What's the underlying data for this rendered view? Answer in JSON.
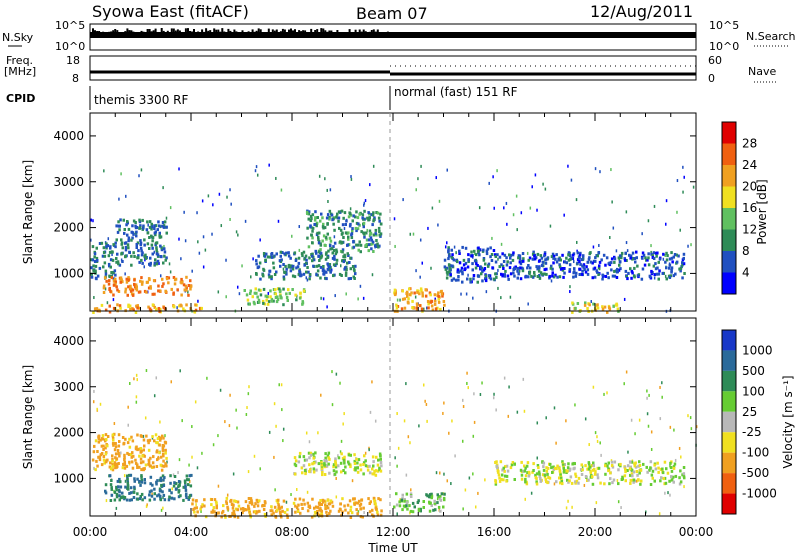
{
  "header": {
    "station": "Syowa East (fitACF)",
    "beam": "Beam 07",
    "date": "12/Aug/2011"
  },
  "strips": {
    "nsky_label": "N.Sky",
    "nsky_ticks": [
      "10^5",
      "10^0"
    ],
    "nsearch_label": "N.Search",
    "freq_label_1": "Freq.",
    "freq_label_2": "[MHz]",
    "freq_ticks": [
      "18",
      "8"
    ],
    "nave_label": "Nave",
    "nave_ticks": [
      "60",
      "0"
    ],
    "cpid_label": "CPID",
    "cpid_modes": [
      "themis 3300 RF",
      "normal (fast) 151 RF"
    ]
  },
  "axes": {
    "ylabel": "Slant Range [km]",
    "xlabel": "Time UT",
    "y_ticks": [
      "1000",
      "2000",
      "3000",
      "4000"
    ],
    "x_ticks": [
      "00:00",
      "04:00",
      "08:00",
      "12:00",
      "16:00",
      "20:00",
      "00:00"
    ]
  },
  "colorbars": {
    "power": {
      "label": "Power [dB]",
      "ticks": [
        "4",
        "8",
        "12",
        "16",
        "20",
        "24",
        "28"
      ],
      "colors": [
        "#0000ff",
        "#2050c0",
        "#2e8b57",
        "#60c060",
        "#f0e020",
        "#f0a020",
        "#f06010",
        "#e00000"
      ]
    },
    "velocity": {
      "label": "Velocity [m s⁻¹]",
      "ticks": [
        "1000",
        "500",
        "100",
        "25",
        "-25",
        "-100",
        "-500",
        "-1000"
      ],
      "colors": [
        "#1838c8",
        "#2a6a9a",
        "#2e8b57",
        "#66cc33",
        "#b8b8b8",
        "#f0e020",
        "#f0a020",
        "#f06010",
        "#e00000"
      ]
    }
  },
  "chart_data": [
    {
      "type": "heatmap",
      "title": "Power",
      "xlabel": "Time UT",
      "ylabel": "Slant Range [km]",
      "xlim": [
        0,
        24
      ],
      "ylim": [
        180,
        4500
      ],
      "colorbar_label": "Power [dB]",
      "colorbar_range": [
        0,
        32
      ],
      "regions": [
        {
          "t": [
            0.0,
            1.0
          ],
          "r": [
            900,
            1700
          ],
          "value": 8
        },
        {
          "t": [
            0.5,
            4.0
          ],
          "r": [
            550,
            950
          ],
          "value": 24
        },
        {
          "t": [
            0.0,
            4.5
          ],
          "r": [
            180,
            350
          ],
          "value": 22
        },
        {
          "t": [
            1.0,
            3.0
          ],
          "r": [
            1200,
            2200
          ],
          "value": 8
        },
        {
          "t": [
            6.0,
            8.5
          ],
          "r": [
            350,
            700
          ],
          "value": 14
        },
        {
          "t": [
            6.5,
            10.5
          ],
          "r": [
            900,
            1500
          ],
          "value": 8
        },
        {
          "t": [
            8.5,
            11.5
          ],
          "r": [
            1500,
            2400
          ],
          "value": 10
        },
        {
          "t": [
            12.0,
            14.0
          ],
          "r": [
            200,
            700
          ],
          "value": 22
        },
        {
          "t": [
            14.0,
            16.0
          ],
          "r": [
            800,
            1600
          ],
          "value": 6
        },
        {
          "t": [
            16.0,
            23.5
          ],
          "r": [
            900,
            1500
          ],
          "value": 6
        },
        {
          "t": [
            19.0,
            21.0
          ],
          "r": [
            180,
            400
          ],
          "value": 18
        }
      ]
    },
    {
      "type": "heatmap",
      "title": "Velocity",
      "xlabel": "Time UT",
      "ylabel": "Slant Range [km]",
      "xlim": [
        0,
        24
      ],
      "ylim": [
        180,
        4500
      ],
      "colorbar_label": "Velocity [m s⁻¹]",
      "regions": [
        {
          "t": [
            0.5,
            4.0
          ],
          "r": [
            550,
            1100
          ],
          "value": 300
        },
        {
          "t": [
            0.0,
            3.0
          ],
          "r": [
            1200,
            2000
          ],
          "value": -100
        },
        {
          "t": [
            4.0,
            11.5
          ],
          "r": [
            180,
            600
          ],
          "value": -100
        },
        {
          "t": [
            8.0,
            11.5
          ],
          "r": [
            1100,
            1600
          ],
          "value": 0
        },
        {
          "t": [
            12.0,
            14.0
          ],
          "r": [
            300,
            700
          ],
          "value": 50
        },
        {
          "t": [
            16.0,
            23.5
          ],
          "r": [
            900,
            1400
          ],
          "value": 0
        }
      ]
    }
  ]
}
